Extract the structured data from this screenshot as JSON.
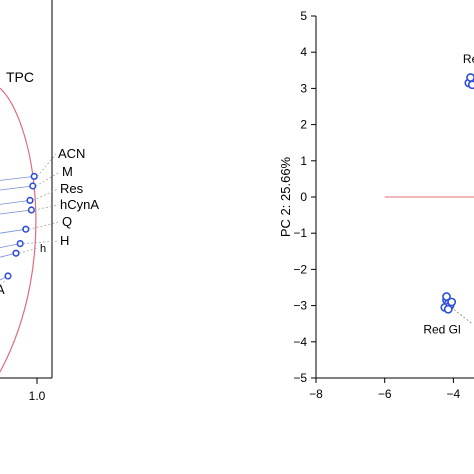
{
  "chart_data": [
    {
      "type": "scatter",
      "panel": "loadings (left, cropped)",
      "title": "",
      "xlabel": "",
      "ylabel": "",
      "x_tick_labels": [
        "1.0"
      ],
      "unit_circle_color": "#e06c7a",
      "point_color": "#2d4fd8",
      "line_color": "#7a8fd6",
      "points": [
        {
          "label": "TPC",
          "x": null,
          "y": null
        },
        {
          "label": "ACN",
          "x": 0.98,
          "y": 0.42
        },
        {
          "label": "M",
          "x": 0.97,
          "y": 0.4
        },
        {
          "label": "Res",
          "x": 0.95,
          "y": 0.37
        },
        {
          "label": "hCynA",
          "x": 0.96,
          "y": 0.35
        },
        {
          "label": "Q",
          "x": 0.92,
          "y": 0.31
        },
        {
          "label": "H",
          "x": 0.88,
          "y": 0.28
        },
        {
          "label": "h",
          "x": 0.85,
          "y": 0.26
        },
        {
          "label": "A",
          "x": null,
          "y": null
        }
      ]
    },
    {
      "type": "scatter",
      "panel": "scores (right, cropped)",
      "title": "",
      "xlabel": "",
      "ylabel": "PC 2: 25.66%",
      "xlim": [
        -8,
        -3.4
      ],
      "ylim": [
        -5,
        5
      ],
      "x_ticks": [
        -8,
        -6,
        -4
      ],
      "y_ticks": [
        5,
        4,
        3,
        2,
        1,
        0,
        -1,
        -2,
        -3,
        -4,
        -5
      ],
      "reference_line": {
        "y": 0,
        "x_from": -6,
        "color": "#e06c7a"
      },
      "point_color": "#2d4fd8",
      "groups": [
        {
          "label": "Red",
          "points": [
            [
              -3.5,
              3.2
            ],
            [
              -3.45,
              3.25
            ],
            [
              -3.55,
              3.15
            ],
            [
              -3.5,
              3.3
            ],
            [
              -3.45,
              3.1
            ]
          ]
        },
        {
          "label": "Red Gl",
          "points": [
            [
              -4.2,
              -2.85
            ],
            [
              -4.15,
              -2.95
            ],
            [
              -4.25,
              -3.05
            ],
            [
              -4.1,
              -3.0
            ],
            [
              -4.2,
              -2.75
            ],
            [
              -4.15,
              -3.1
            ],
            [
              -4.05,
              -2.9
            ]
          ]
        }
      ]
    }
  ]
}
